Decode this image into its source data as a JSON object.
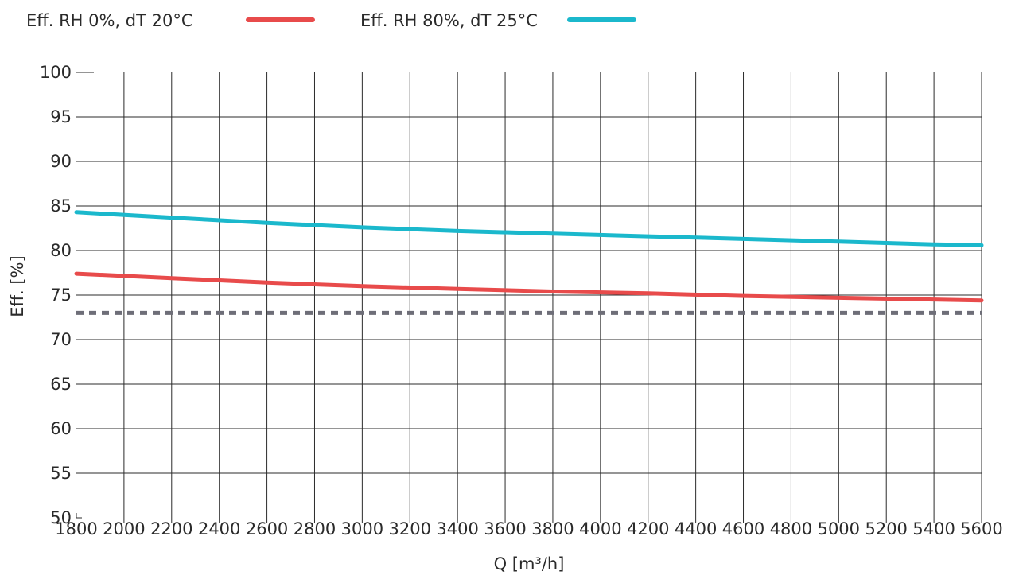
{
  "chart_data": {
    "type": "line",
    "xlabel": "Q [m³/h]",
    "ylabel": "Eff. [%]",
    "xlim": [
      1800,
      5600
    ],
    "ylim": [
      50,
      100
    ],
    "x_ticks": [
      1800,
      2000,
      2200,
      2400,
      2600,
      2800,
      3000,
      3200,
      3400,
      3600,
      3800,
      4000,
      4200,
      4400,
      4600,
      4800,
      5000,
      5200,
      5400,
      5600
    ],
    "y_ticks": [
      50,
      55,
      60,
      65,
      70,
      75,
      80,
      85,
      90,
      95,
      100
    ],
    "grid": true,
    "legend_position": "top-left",
    "series": [
      {
        "name": "Eff. RH 0%, dT 20°C",
        "color": "#e84b4b",
        "x": [
          1800,
          2200,
          2600,
          3000,
          3400,
          3800,
          4200,
          4600,
          5000,
          5400,
          5600
        ],
        "y": [
          77.4,
          76.9,
          76.4,
          76.0,
          75.7,
          75.4,
          75.2,
          74.9,
          74.7,
          74.5,
          74.4
        ]
      },
      {
        "name": "Eff. RH 80%, dT 25°C",
        "color": "#1bb8cc",
        "x": [
          1800,
          2200,
          2600,
          3000,
          3400,
          3800,
          4200,
          4600,
          5000,
          5400,
          5600
        ],
        "y": [
          84.3,
          83.7,
          83.1,
          82.6,
          82.2,
          81.9,
          81.6,
          81.3,
          81.0,
          80.7,
          80.6
        ]
      },
      {
        "color": "#6e6e78",
        "dashed": true,
        "x": [
          1800,
          5600
        ],
        "y": [
          73,
          73
        ]
      }
    ]
  }
}
